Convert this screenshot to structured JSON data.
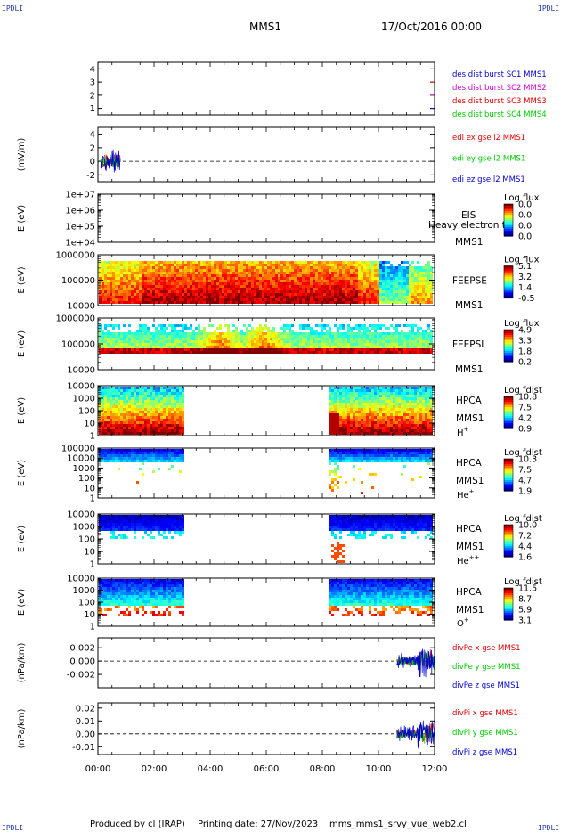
{
  "corner_label": "IPDLI",
  "header": {
    "spacecraft": "MMS1",
    "date": "17/Oct/2016 00:00"
  },
  "footer": {
    "produced_by": "Produced by cl (IRAP)",
    "printing_date": "Printing date: 27/Nov/2023",
    "script_name": "mms_mms1_srvy_vue_web2.cl"
  },
  "colors": {
    "blue": "#0000cc",
    "green": "#00cc00",
    "red": "#dd0000",
    "magenta": "#cc00cc",
    "teal": "#00aaaa"
  },
  "chart_data": [
    {
      "type": "line",
      "ylabel": "",
      "ylim": [
        0.5,
        4.5
      ],
      "yticks": [
        1,
        2,
        3,
        4
      ],
      "ytick_labels": [
        "1",
        "2",
        "3",
        "4"
      ],
      "series": [
        {
          "name": "des dist burst SC1 MMS1",
          "color": "#0000cc",
          "level": 1,
          "x": [
            11.85,
            12.0
          ]
        },
        {
          "name": "des dist burst SC2 MMS2",
          "color": "#cc00cc",
          "level": 2,
          "x": [
            11.85,
            12.0
          ]
        },
        {
          "name": "des dist burst SC3 MMS3",
          "color": "#dd0000",
          "level": 3,
          "x": [
            11.85,
            12.0
          ]
        },
        {
          "name": "des dist burst SC4 MMS4",
          "color": "#00cc00",
          "level": 4,
          "x": [
            11.85,
            12.0
          ]
        }
      ]
    },
    {
      "type": "line",
      "ylabel": "(mV/m)",
      "ylim": [
        -3,
        5
      ],
      "yticks": [
        -2,
        0,
        2,
        4
      ],
      "ytick_labels": [
        "-2",
        "0",
        "2",
        "4"
      ],
      "zero_line": true,
      "series": [
        {
          "name": "edi ex gse l2 MMS1",
          "color": "#dd0000"
        },
        {
          "name": "edi ey gse l2 MMS1",
          "color": "#00cc00"
        },
        {
          "name": "edi ez gse l2 MMS1",
          "color": "#0000cc"
        }
      ],
      "activity_x": [
        0.1,
        0.8
      ]
    },
    {
      "type": "heatmap",
      "ylabel": "E (eV)",
      "ytick_labels": [
        "1e+04",
        "1e+05",
        "1e+06",
        "1e+07"
      ],
      "side_labels": [
        "EIS",
        "MMS1"
      ],
      "overlay_text": "Heavy electron to",
      "colorbar": {
        "title": "Log flux",
        "ticks": [
          "0.0",
          "0.0",
          "0.0",
          "0.0"
        ]
      },
      "fill": "empty"
    },
    {
      "type": "heatmap",
      "ylabel": "E (eV)",
      "ytick_labels": [
        "10000",
        "100000",
        "1000000"
      ],
      "side_labels": [
        "FEEPSE",
        "MMS1"
      ],
      "colorbar": {
        "title": "Log flux",
        "ticks": [
          "5.1",
          "3.2",
          "1.4",
          "-0.5"
        ]
      },
      "fill": "feepse"
    },
    {
      "type": "heatmap",
      "ylabel": "E (eV)",
      "ytick_labels": [
        "10000",
        "100000",
        "1000000"
      ],
      "side_labels": [
        "FEEPSI",
        "MMS1"
      ],
      "colorbar": {
        "title": "Log flux",
        "ticks": [
          "4.9",
          "3.3",
          "1.8",
          "0.2"
        ]
      },
      "fill": "feepsi"
    },
    {
      "type": "heatmap",
      "ylabel": "E (eV)",
      "ytick_labels": [
        "1",
        "10",
        "100",
        "1000",
        "10000"
      ],
      "side_labels": [
        "HPCA",
        "MMS1"
      ],
      "species": "H",
      "species_sup": "+",
      "colorbar": {
        "title": "Log fdist",
        "ticks": [
          "10.8",
          "7.5",
          "4.2",
          "0.9"
        ]
      },
      "fill": "hpca_h",
      "data_x": [
        [
          0.0,
          3.0
        ],
        [
          8.2,
          12.0
        ]
      ]
    },
    {
      "type": "heatmap",
      "ylabel": "E (eV)",
      "ytick_labels": [
        "1",
        "10",
        "100",
        "1000",
        "10000",
        "100000"
      ],
      "side_labels": [
        "HPCA",
        "MMS1"
      ],
      "species": "He",
      "species_sup": "+",
      "colorbar": {
        "title": "Log fdist",
        "ticks": [
          "10.3",
          "7.5",
          "4.7",
          "1.9"
        ]
      },
      "fill": "hpca_sparse",
      "data_x": [
        [
          0.0,
          3.0
        ],
        [
          8.2,
          12.0
        ]
      ]
    },
    {
      "type": "heatmap",
      "ylabel": "E (eV)",
      "ytick_labels": [
        "1",
        "10",
        "100",
        "1000",
        "10000"
      ],
      "side_labels": [
        "HPCA",
        "MMS1"
      ],
      "species": "He",
      "species_sup": "++",
      "colorbar": {
        "title": "Log fdist",
        "ticks": [
          "10.0",
          "7.2",
          "4.4",
          "1.6"
        ]
      },
      "fill": "hpca_hepp",
      "data_x": [
        [
          0.0,
          3.0
        ],
        [
          8.2,
          12.0
        ]
      ]
    },
    {
      "type": "heatmap",
      "ylabel": "E (eV)",
      "ytick_labels": [
        "1",
        "10",
        "100",
        "1000",
        "10000"
      ],
      "side_labels": [
        "HPCA",
        "MMS1"
      ],
      "species": "O",
      "species_sup": "+",
      "colorbar": {
        "title": "Log fdist",
        "ticks": [
          "11.5",
          "8.7",
          "5.9",
          "3.1"
        ]
      },
      "fill": "hpca_o",
      "data_x": [
        [
          0.0,
          3.0
        ],
        [
          8.2,
          12.0
        ]
      ]
    },
    {
      "type": "line",
      "ylabel": "(nPa/km)",
      "ylim": [
        -0.004,
        0.0035
      ],
      "yticks": [
        -0.002,
        0.0,
        0.002
      ],
      "ytick_labels": [
        "-0.002",
        "0.000",
        "0.002"
      ],
      "zero_line": true,
      "series": [
        {
          "name": "divPe x gse MMS1",
          "color": "#dd0000"
        },
        {
          "name": "divPe y gse MMS1",
          "color": "#00cc00"
        },
        {
          "name": "divPe z gse MMS1",
          "color": "#0000cc"
        }
      ],
      "activity_x": [
        10.65,
        12.0
      ]
    },
    {
      "type": "line",
      "ylabel": "(nPa/km)",
      "ylim": [
        -0.016,
        0.024
      ],
      "yticks": [
        -0.01,
        0.0,
        0.01,
        0.02
      ],
      "ytick_labels": [
        "-0.01",
        "0.00",
        "0.01",
        "0.02"
      ],
      "zero_line": true,
      "series": [
        {
          "name": "divPi x gse MMS1",
          "color": "#dd0000"
        },
        {
          "name": "divPi y gse MMS1",
          "color": "#00cc00"
        },
        {
          "name": "divPi z gse MMS1",
          "color": "#0000cc"
        }
      ],
      "activity_x": [
        10.65,
        12.0
      ]
    }
  ],
  "xaxis": {
    "xlim": [
      0,
      12
    ],
    "ticks": [
      0,
      2,
      4,
      6,
      8,
      10,
      12
    ],
    "tick_labels": [
      "00:00",
      "02:00",
      "04:00",
      "06:00",
      "08:00",
      "10:00",
      "12:00"
    ]
  }
}
